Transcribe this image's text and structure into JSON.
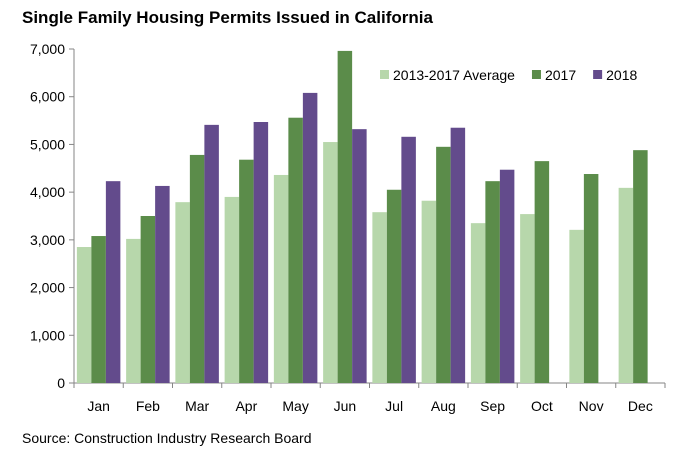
{
  "chart_data": {
    "type": "bar",
    "title": "Single Family Housing Permits Issued in California",
    "source": "Source: Construction Industry Research Board",
    "categories": [
      "Jan",
      "Feb",
      "Mar",
      "Apr",
      "May",
      "Jun",
      "Jul",
      "Aug",
      "Sep",
      "Oct",
      "Nov",
      "Dec"
    ],
    "ylim": [
      0,
      7000
    ],
    "yticks": [
      0,
      1000,
      2000,
      3000,
      4000,
      5000,
      6000,
      7000
    ],
    "ytick_labels": [
      "0",
      "1,000",
      "2,000",
      "3,000",
      "4,000",
      "5,000",
      "6,000",
      "7,000"
    ],
    "grid": false,
    "legend_position": "top-right",
    "series": [
      {
        "name": "2013-2017 Average",
        "color": "#b7d7ab",
        "values": [
          2850,
          3020,
          3790,
          3900,
          4360,
          5050,
          3580,
          3820,
          3350,
          3540,
          3210,
          4090
        ]
      },
      {
        "name": "2017",
        "color": "#5b8c4a",
        "values": [
          3080,
          3500,
          4780,
          4680,
          5560,
          6960,
          4050,
          4950,
          4230,
          4650,
          4380,
          4880
        ]
      },
      {
        "name": "2018",
        "color": "#634b8c",
        "values": [
          4230,
          4130,
          5410,
          5470,
          6080,
          5320,
          5160,
          5350,
          4470,
          null,
          null,
          null
        ]
      }
    ]
  }
}
